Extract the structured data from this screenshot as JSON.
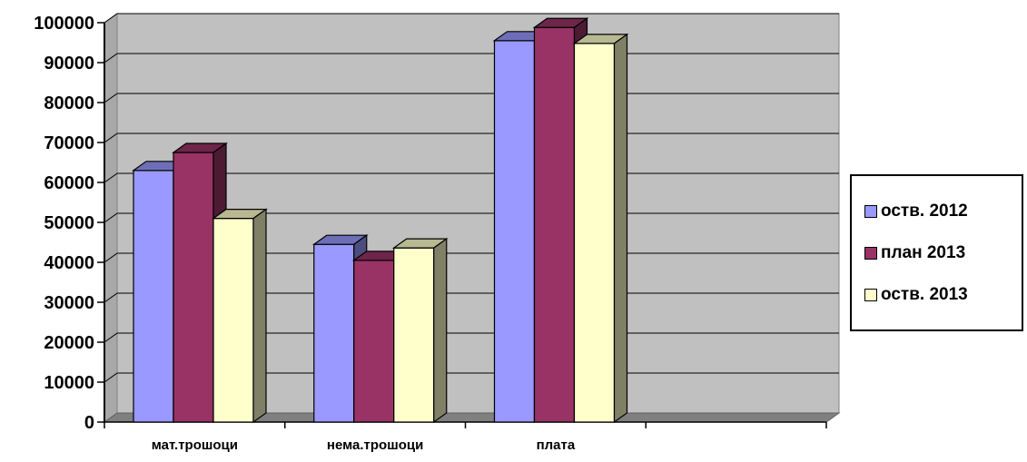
{
  "chart_data": {
    "type": "bar",
    "categories": [
      "мат.трошоци",
      "нема.трошоци",
      "плата",
      ""
    ],
    "series": [
      {
        "name": "оств. 2012",
        "values": [
          63000,
          44500,
          95500,
          null
        ],
        "color": "#9999ff"
      },
      {
        "name": "план 2013",
        "values": [
          67500,
          40500,
          98800,
          null
        ],
        "color": "#993366"
      },
      {
        "name": "оств. 2013",
        "values": [
          51000,
          43600,
          94800,
          null
        ],
        "color": "#ffffcc"
      }
    ],
    "y_ticks": [
      "0",
      "10000",
      "20000",
      "30000",
      "40000",
      "50000",
      "60000",
      "70000",
      "80000",
      "90000",
      "100000"
    ],
    "ylim": [
      0,
      100000
    ],
    "title": "",
    "xlabel": "",
    "ylabel": "",
    "grid": true,
    "legend_position": "right",
    "plot_background": "#c0c0c0"
  }
}
